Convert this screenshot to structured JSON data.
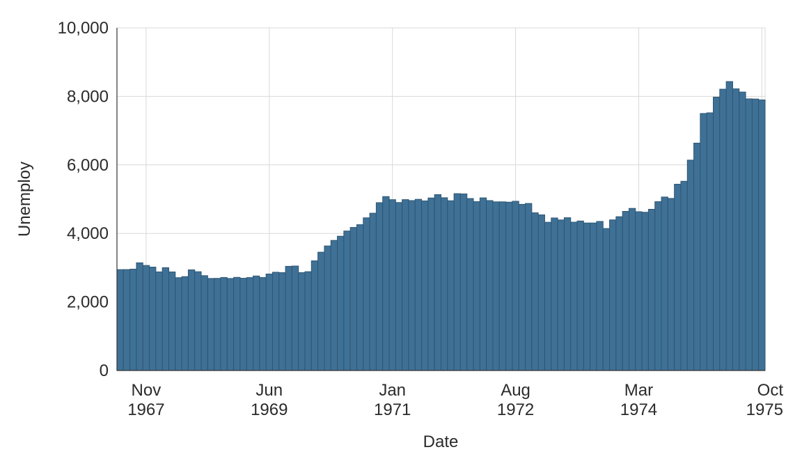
{
  "chart_data": {
    "type": "bar",
    "title": "",
    "xlabel": "Date",
    "ylabel": "Unemploy",
    "ylim": [
      0,
      10000
    ],
    "yticks": [
      0,
      2000,
      4000,
      6000,
      8000,
      10000
    ],
    "ytick_labels": [
      "0",
      "2,000",
      "4,000",
      "6,000",
      "8,000",
      "10,000"
    ],
    "xlim": [
      "1967-07",
      "1975-10"
    ],
    "xticks": [
      {
        "date": "1967-11",
        "line1": "Nov",
        "line2": "1967"
      },
      {
        "date": "1969-06",
        "line1": "Jun",
        "line2": "1969"
      },
      {
        "date": "1971-01",
        "line1": "Jan",
        "line2": "1971"
      },
      {
        "date": "1972-08",
        "line1": "Aug",
        "line2": "1972"
      },
      {
        "date": "1974-03",
        "line1": "Mar",
        "line2": "1974"
      },
      {
        "date": "1975-10",
        "line1": "Oct",
        "line2": "1975"
      }
    ],
    "grid": true,
    "bar_color": "#3f7196",
    "series": [
      {
        "x_start": "1967-07",
        "frequency": "monthly",
        "values": [
          2944,
          2945,
          2958,
          3143,
          3066,
          3018,
          2878,
          3001,
          2877,
          2709,
          2740,
          2938,
          2883,
          2768,
          2686,
          2689,
          2715,
          2685,
          2718,
          2692,
          2712,
          2758,
          2713,
          2816,
          2868,
          2856,
          3040,
          3049,
          2856,
          2884,
          3201,
          3453,
          3635,
          3797,
          3919,
          4071,
          4175,
          4256,
          4456,
          4591,
          4898,
          5076,
          4986,
          4903,
          4987,
          4959,
          4996,
          4949,
          5035,
          5134,
          5042,
          4954,
          5161,
          5154,
          5019,
          4928,
          5038,
          4959,
          4922,
          4923,
          4913,
          4939,
          4849,
          4875,
          4602,
          4543,
          4326,
          4452,
          4394,
          4459,
          4329,
          4363,
          4305,
          4305,
          4350,
          4144,
          4396,
          4489,
          4644,
          4731,
          4634,
          4618,
          4705,
          4927,
          5063,
          5022,
          5437,
          5523,
          6140,
          6636,
          7501,
          7520,
          7978,
          8210,
          8433,
          8220,
          8127,
          7928,
          7923,
          7897
        ]
      }
    ]
  }
}
